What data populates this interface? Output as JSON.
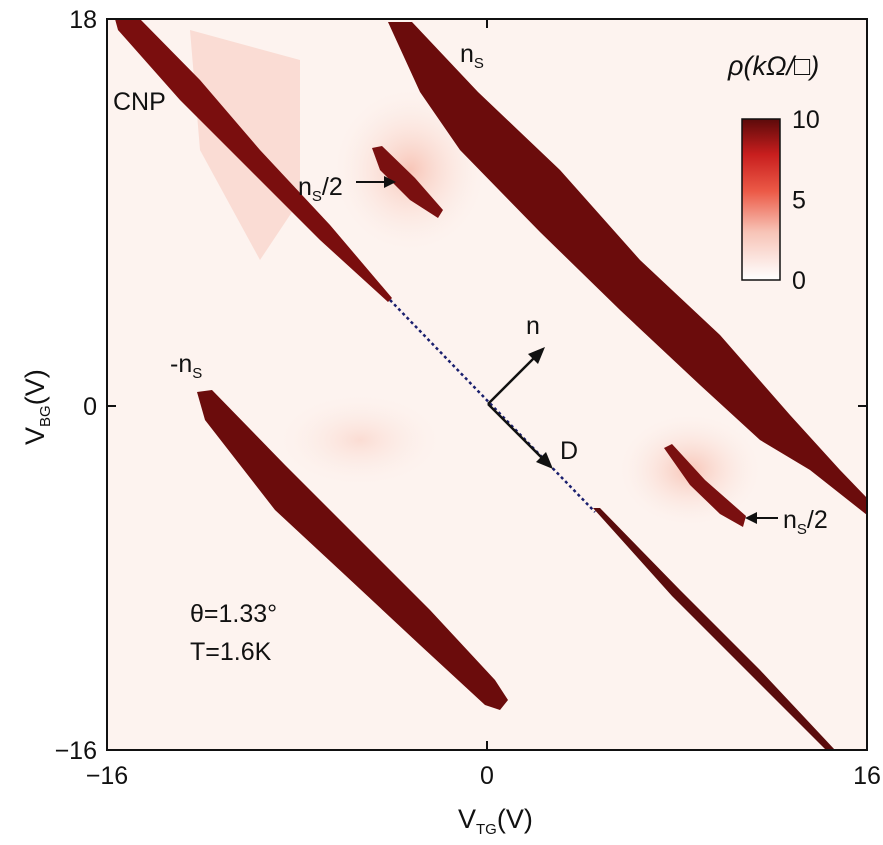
{
  "chart_data": {
    "type": "heatmap",
    "title": "",
    "xlabel": {
      "main": "V",
      "sub": "TG",
      "unit": "(V)"
    },
    "ylabel": {
      "main": "V",
      "sub": "BG",
      "unit": "(V)"
    },
    "xlim": [
      -16,
      16
    ],
    "ylim": [
      -16,
      18
    ],
    "xticks": [
      -16,
      0,
      16
    ],
    "yticks": [
      -16,
      0,
      18
    ],
    "xtick_labels": [
      "−16",
      "0",
      "16"
    ],
    "ytick_labels": [
      "−16",
      "0",
      "18"
    ],
    "colorbar": {
      "title": "ρ(kΩ/□)",
      "range": [
        0,
        10
      ],
      "ticks": [
        10,
        5,
        0
      ],
      "tick_labels": [
        "10",
        "5",
        "0"
      ],
      "colors": [
        "#ffffff",
        "#f7c3b6",
        "#ec5a47",
        "#c81e1e",
        "#5c0a0a"
      ]
    },
    "features": [
      {
        "name": "CNP",
        "from": [
          -16,
          18
        ],
        "to": [
          -4,
          5
        ]
      },
      {
        "name": "CNP (continued)",
        "from": [
          -4,
          5
        ],
        "to": [
          16,
          -16
        ]
      },
      {
        "name": "nS",
        "from": [
          -4,
          18
        ],
        "to": [
          16,
          -4
        ]
      },
      {
        "name": "-nS",
        "from": [
          -12,
          0.8
        ],
        "to": [
          1,
          -14
        ]
      },
      {
        "name": "nS/2 (upper)",
        "from": [
          -4.6,
          12.5
        ],
        "to": [
          -1.8,
          9.8
        ]
      },
      {
        "name": "nS/2 (lower)",
        "from": [
          7.6,
          -2.2
        ],
        "to": [
          10.8,
          -5.5
        ]
      }
    ],
    "annotations": {
      "cnp": "CNP",
      "ns_top": {
        "main": "n",
        "sub": "S"
      },
      "ns_half_top": {
        "main": "n",
        "sub": "S",
        "rest": "/2"
      },
      "minus_ns": {
        "main": "-n",
        "sub": "S"
      },
      "ns_half_bottom": {
        "main": "n",
        "sub": "S",
        "rest": "/2"
      },
      "arrow_n": "n",
      "arrow_d": "D",
      "theta": "θ=1.33°",
      "temperature": "T=1.6K"
    }
  }
}
